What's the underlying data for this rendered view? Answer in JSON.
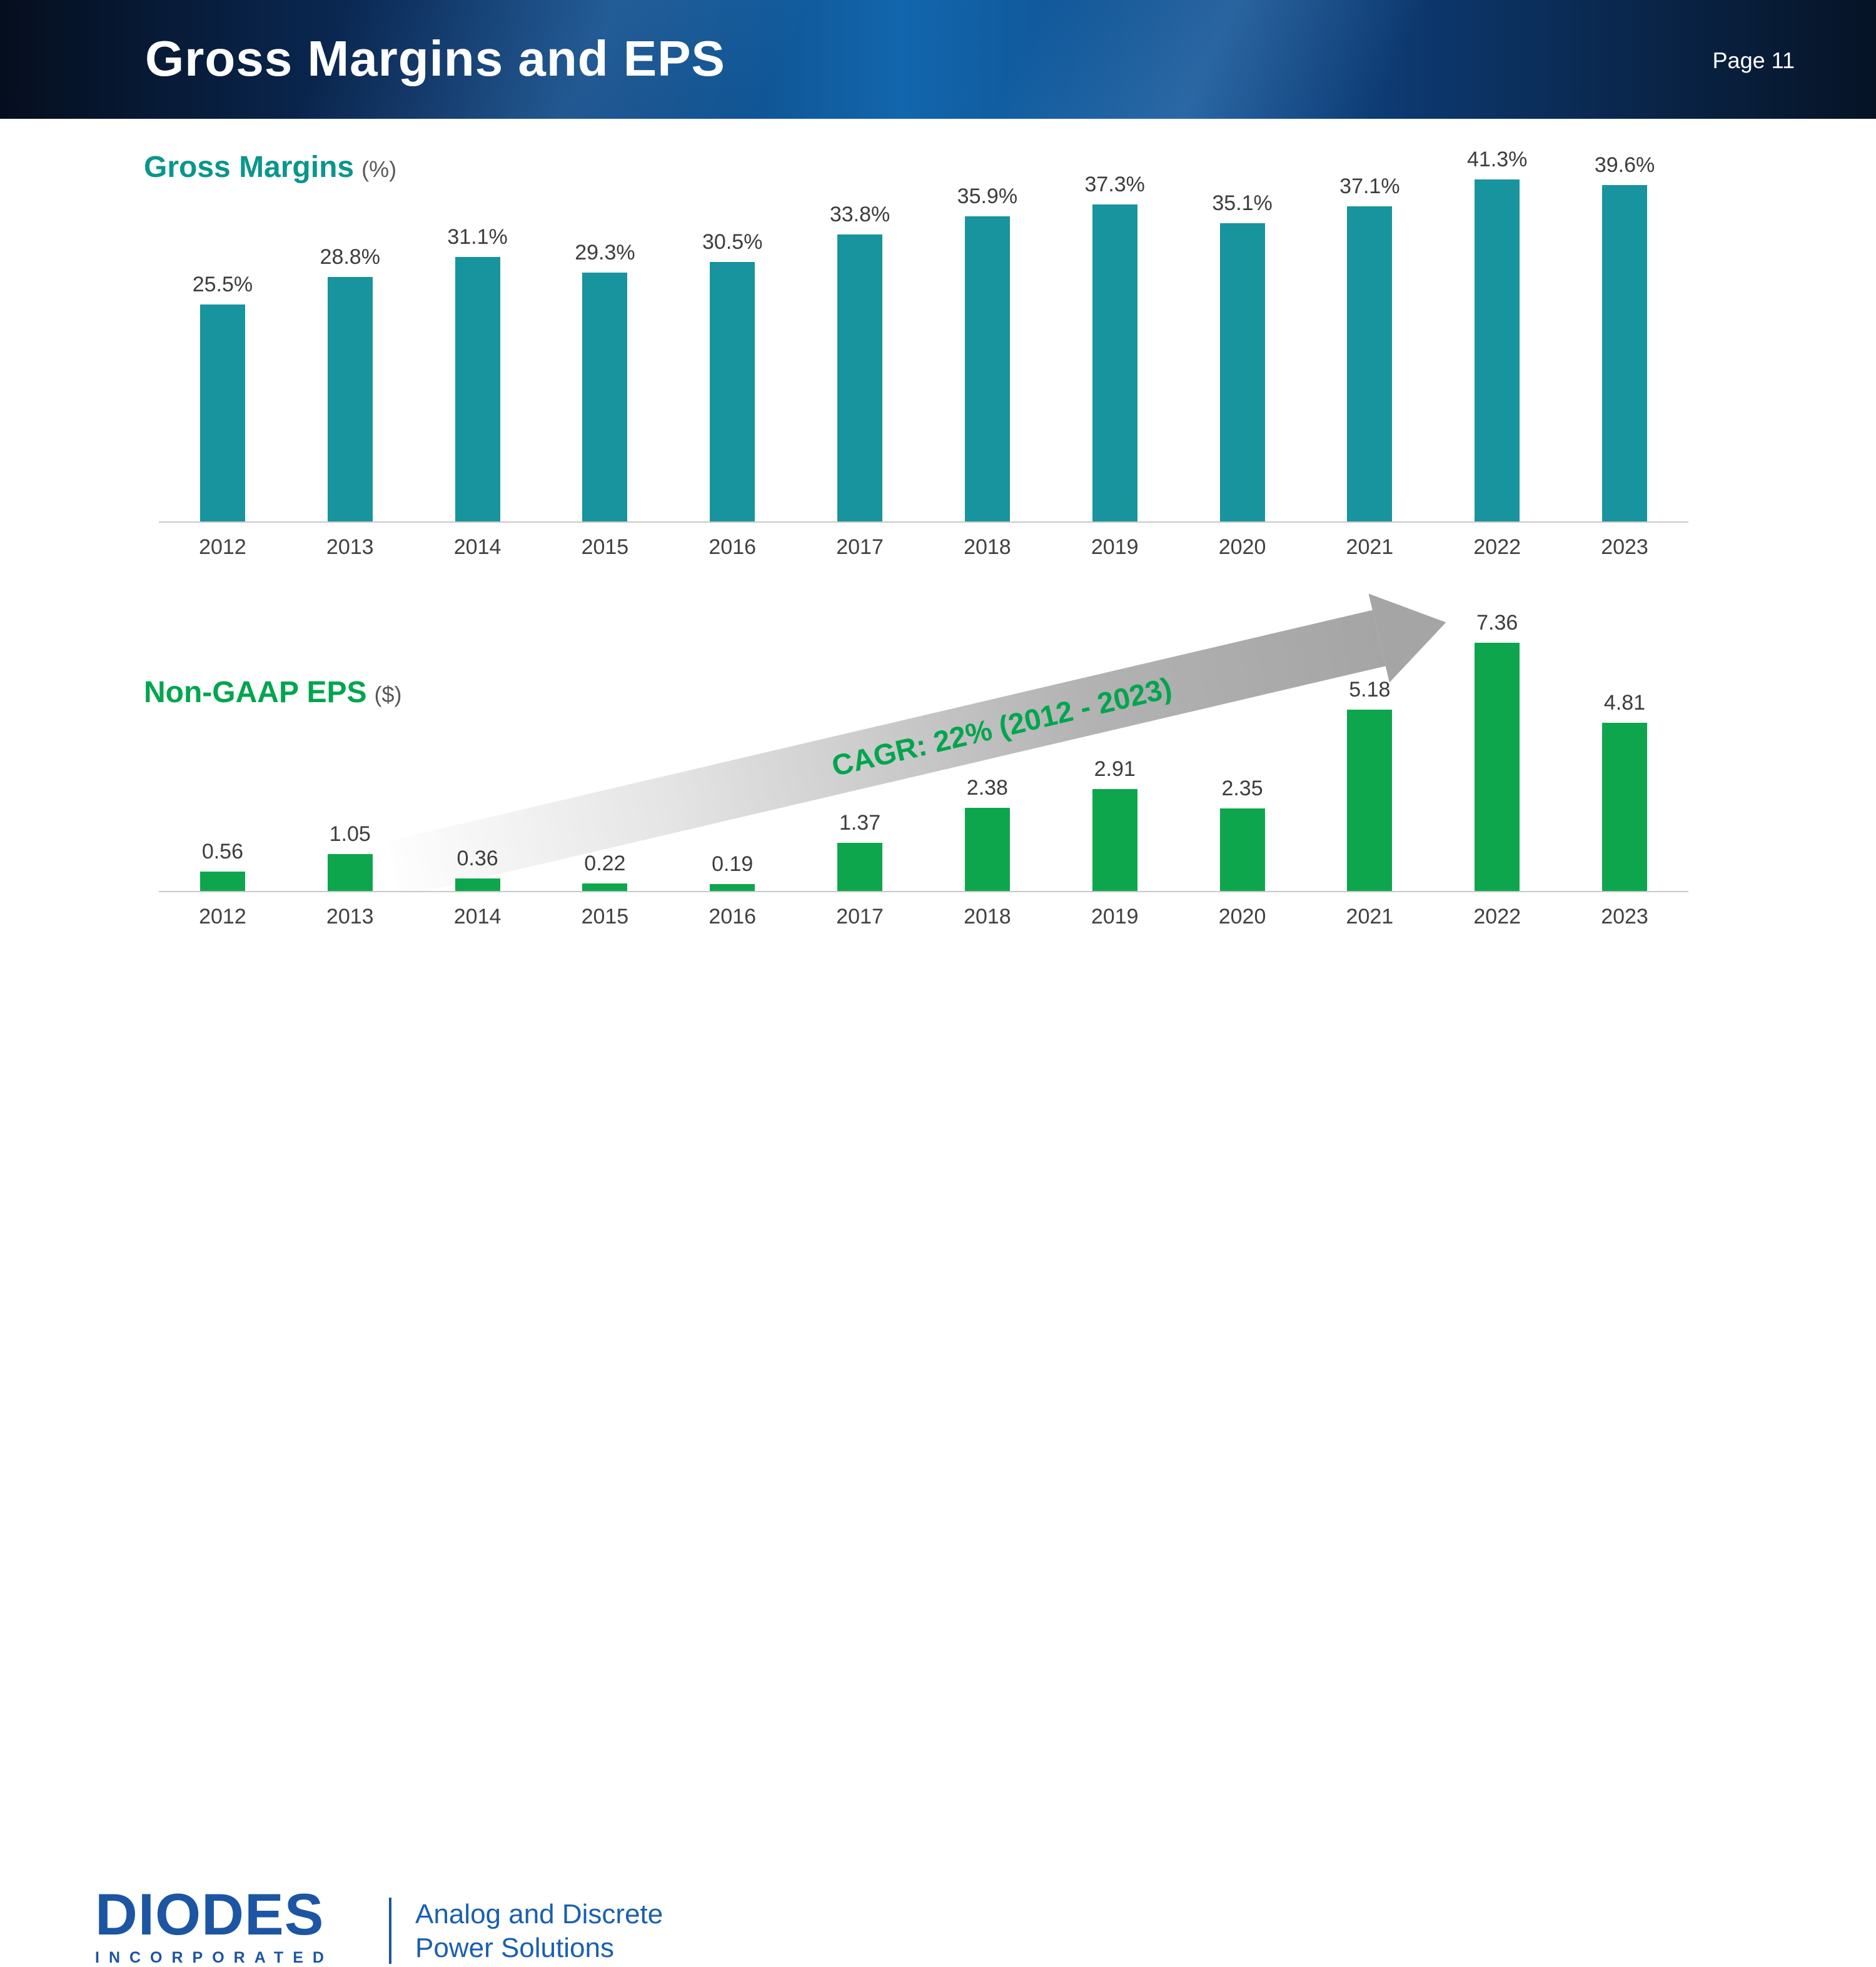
{
  "header": {
    "title": "Gross Margins and EPS",
    "page_label": "Page 11"
  },
  "chart_data": [
    {
      "type": "bar",
      "title": "Gross Margins",
      "unit_label": "(%)",
      "title_color": "#0a968c",
      "bar_color": "#17949e",
      "categories": [
        "2012",
        "2013",
        "2014",
        "2015",
        "2016",
        "2017",
        "2018",
        "2019",
        "2020",
        "2021",
        "2022",
        "2023"
      ],
      "values": [
        25.5,
        28.8,
        31.1,
        29.3,
        30.5,
        33.8,
        35.9,
        37.3,
        35.1,
        37.1,
        41.3,
        39.6
      ],
      "labels": [
        "25.5%",
        "28.8%",
        "31.1%",
        "29.3%",
        "30.5%",
        "33.8%",
        "35.9%",
        "37.3%",
        "35.1%",
        "37.1%",
        "41.3%",
        "39.6%"
      ],
      "ylim": [
        0,
        44
      ],
      "grid": false,
      "legend": "none"
    },
    {
      "type": "bar",
      "title": "Non-GAAP EPS",
      "unit_label": "($)",
      "title_color": "#00a54e",
      "bar_color": "#0ea64d",
      "categories": [
        "2012",
        "2013",
        "2014",
        "2015",
        "2016",
        "2017",
        "2018",
        "2019",
        "2020",
        "2021",
        "2022",
        "2023"
      ],
      "values": [
        0.56,
        1.05,
        0.36,
        0.22,
        0.19,
        1.37,
        2.38,
        2.91,
        2.35,
        5.18,
        7.36,
        4.81
      ],
      "labels": [
        "0.56",
        "1.05",
        "0.36",
        "0.22",
        "0.19",
        "1.37",
        "2.38",
        "2.91",
        "2.35",
        "5.18",
        "7.36",
        "4.81"
      ],
      "ylim": [
        0,
        8
      ],
      "grid": false,
      "legend": "none",
      "annotation": {
        "label": "CAGR: 22% (2012 - 2023)",
        "color": "#00a54e"
      }
    }
  ],
  "footer": {
    "logo_text": "DIODES",
    "logo_subtext": "INCORPORATED",
    "tagline_line1": "Analog and Discrete",
    "tagline_line2": "Power Solutions"
  }
}
